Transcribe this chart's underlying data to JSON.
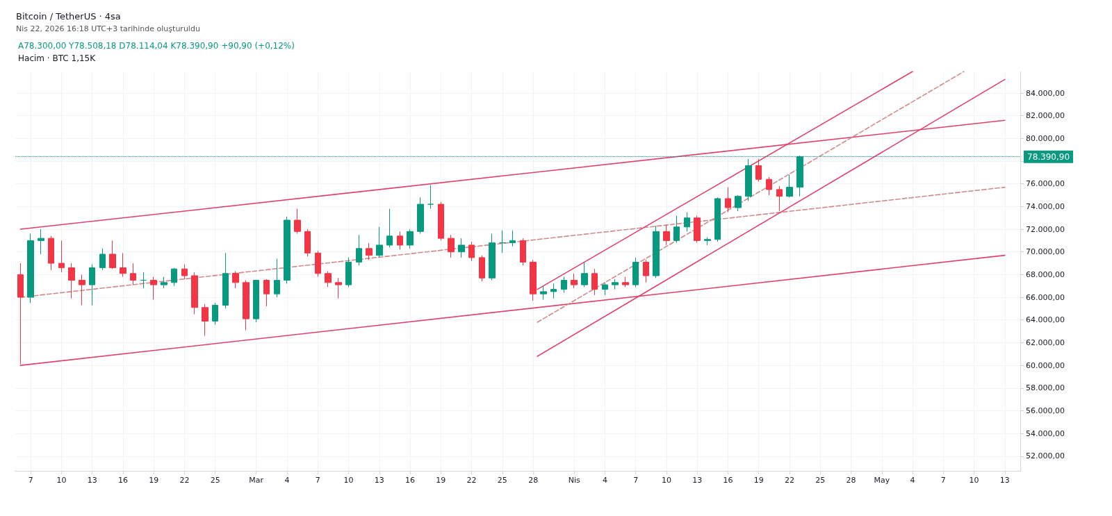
{
  "chart_data": {
    "type": "candlestick",
    "title": "Bitcoin / TetherUS · 4sa",
    "subtitle": "Nis 22, 2026 16:18 UTC+3 tarihinde oluşturuldu",
    "annotations": [
      "A78.300,00 Y78.508,18 D78.114,04 K78.390,90 +90,90 (+0,12%)",
      "Hacim · BTC 1,15K"
    ],
    "x": [
      "2026-02-06",
      "2026-02-07",
      "2026-02-08",
      "2026-02-09",
      "2026-02-10",
      "2026-02-11",
      "2026-02-12",
      "2026-02-13",
      "2026-02-14",
      "2026-02-15",
      "2026-02-16",
      "2026-02-17",
      "2026-02-18",
      "2026-02-19",
      "2026-02-20",
      "2026-02-21",
      "2026-02-22",
      "2026-02-23",
      "2026-02-24",
      "2026-02-25",
      "2026-02-26",
      "2026-02-27",
      "2026-02-28",
      "2026-03-01",
      "2026-03-02",
      "2026-03-03",
      "2026-03-04",
      "2026-03-05",
      "2026-03-06",
      "2026-03-07",
      "2026-03-08",
      "2026-03-09",
      "2026-03-10",
      "2026-03-11",
      "2026-03-12",
      "2026-03-13",
      "2026-03-14",
      "2026-03-15",
      "2026-03-16",
      "2026-03-17",
      "2026-03-18",
      "2026-03-19",
      "2026-03-20",
      "2026-03-21",
      "2026-03-22",
      "2026-03-23",
      "2026-03-24",
      "2026-03-25",
      "2026-03-26",
      "2026-03-27",
      "2026-03-28",
      "2026-03-29",
      "2026-03-30",
      "2026-03-31",
      "2026-04-01",
      "2026-04-02",
      "2026-04-03",
      "2026-04-04",
      "2026-04-05",
      "2026-04-06",
      "2026-04-07",
      "2026-04-08",
      "2026-04-09",
      "2026-04-10",
      "2026-04-11",
      "2026-04-12",
      "2026-04-13",
      "2026-04-14",
      "2026-04-15",
      "2026-04-16",
      "2026-04-17",
      "2026-04-18",
      "2026-04-19",
      "2026-04-20",
      "2026-04-21",
      "2026-04-22",
      "2026-04-23"
    ],
    "ohlc": [
      [
        68000,
        69000,
        60100,
        66000
      ],
      [
        66000,
        71600,
        65500,
        71000
      ],
      [
        71000,
        72000,
        69800,
        71200
      ],
      [
        71200,
        71400,
        68400,
        69000
      ],
      [
        69000,
        71000,
        68200,
        68600
      ],
      [
        68600,
        69000,
        65900,
        67500
      ],
      [
        67500,
        68000,
        65300,
        67100
      ],
      [
        67100,
        68900,
        65300,
        68600
      ],
      [
        68600,
        70300,
        68400,
        69800
      ],
      [
        69800,
        71000,
        68500,
        68600
      ],
      [
        68600,
        69900,
        67800,
        68100
      ],
      [
        68100,
        69000,
        67100,
        67500
      ],
      [
        67500,
        68200,
        66800,
        67500
      ],
      [
        67500,
        67800,
        65800,
        67100
      ],
      [
        67100,
        67800,
        66800,
        67300
      ],
      [
        67300,
        68600,
        67000,
        68500
      ],
      [
        68500,
        68900,
        67600,
        67900
      ],
      [
        67900,
        68200,
        64500,
        65100
      ],
      [
        65100,
        65400,
        62600,
        63900
      ],
      [
        63900,
        65500,
        63600,
        65300
      ],
      [
        65300,
        69900,
        65000,
        68100
      ],
      [
        68100,
        68300,
        66800,
        67300
      ],
      [
        67300,
        67500,
        63100,
        64100
      ],
      [
        64100,
        67500,
        63800,
        67500
      ],
      [
        67500,
        67600,
        65200,
        66300
      ],
      [
        66300,
        69400,
        66000,
        67500
      ],
      [
        67500,
        73100,
        67200,
        72800
      ],
      [
        72800,
        73800,
        71600,
        71800
      ],
      [
        71800,
        72000,
        69600,
        69900
      ],
      [
        69900,
        70100,
        67800,
        68100
      ],
      [
        68100,
        68300,
        66900,
        67300
      ],
      [
        67300,
        67700,
        65900,
        67100
      ],
      [
        67100,
        69500,
        66900,
        69100
      ],
      [
        69100,
        71500,
        68800,
        70300
      ],
      [
        70300,
        70800,
        69300,
        69700
      ],
      [
        69700,
        72200,
        69500,
        70600
      ],
      [
        70600,
        73800,
        70400,
        71400
      ],
      [
        71400,
        71800,
        70200,
        70600
      ],
      [
        70600,
        72000,
        70300,
        71800
      ],
      [
        71800,
        74800,
        71600,
        74200
      ],
      [
        74200,
        75900,
        73800,
        74200
      ],
      [
        74200,
        74400,
        71000,
        71200
      ],
      [
        71200,
        71500,
        69500,
        70000
      ],
      [
        70000,
        71200,
        69500,
        70600
      ],
      [
        70600,
        70900,
        69200,
        69500
      ],
      [
        69500,
        69700,
        67400,
        67700
      ],
      [
        67700,
        71600,
        67500,
        70800
      ],
      [
        70800,
        71900,
        69900,
        70800
      ],
      [
        70800,
        71900,
        70500,
        71000
      ],
      [
        71000,
        71200,
        68800,
        69100
      ],
      [
        69100,
        69300,
        65700,
        66300
      ],
      [
        66300,
        67000,
        65800,
        66500
      ],
      [
        66500,
        67200,
        65900,
        66700
      ],
      [
        66700,
        67800,
        66400,
        67500
      ],
      [
        67500,
        68100,
        66800,
        67100
      ],
      [
        67100,
        69100,
        66900,
        68100
      ],
      [
        68100,
        68500,
        66200,
        66700
      ],
      [
        66700,
        67300,
        66200,
        67100
      ],
      [
        67100,
        67600,
        66700,
        67300
      ],
      [
        67300,
        67800,
        66900,
        67100
      ],
      [
        67100,
        69500,
        66900,
        69100
      ],
      [
        69100,
        69300,
        67300,
        67900
      ],
      [
        67900,
        72300,
        67700,
        71800
      ],
      [
        71800,
        72400,
        70600,
        71000
      ],
      [
        71000,
        73200,
        70800,
        72200
      ],
      [
        72200,
        73500,
        71800,
        73000
      ],
      [
        73000,
        73200,
        70800,
        71000
      ],
      [
        71000,
        71300,
        70600,
        71100
      ],
      [
        71100,
        74800,
        70900,
        74700
      ],
      [
        74700,
        75700,
        73500,
        73900
      ],
      [
        73900,
        75000,
        73600,
        74900
      ],
      [
        74900,
        78200,
        74500,
        77600
      ],
      [
        77600,
        78200,
        76200,
        76400
      ],
      [
        76400,
        76600,
        75000,
        75500
      ],
      [
        75500,
        75800,
        73600,
        74900
      ],
      [
        74900,
        76800,
        74800,
        75700
      ],
      [
        75700,
        78500,
        74900,
        78390.9
      ]
    ],
    "series": [
      {
        "type": "line",
        "color": "#e0406a",
        "line_style": "solid",
        "x": [
          "2026-02-06",
          "2026-05-13"
        ],
        "values": [
          72000,
          81600
        ]
      },
      {
        "type": "line",
        "color": "#e0406a",
        "line_style": "solid",
        "x": [
          "2026-02-06",
          "2026-05-13"
        ],
        "values": [
          60000,
          69700
        ]
      },
      {
        "type": "line",
        "color": "#d08a8a",
        "line_style": "dashed",
        "x": [
          "2026-02-06",
          "2026-05-13"
        ],
        "values": [
          66000,
          75700
        ]
      },
      {
        "type": "line",
        "color": "#e0406a",
        "line_style": "solid",
        "x": [
          "2026-03-28T10:00",
          "2026-05-13T00:00"
        ],
        "values": [
          60800,
          85200
        ]
      },
      {
        "type": "line",
        "color": "#e0406a",
        "line_style": "solid",
        "x": [
          "2026-03-28T10:00",
          "2026-05-04T00:00"
        ],
        "values": [
          66700,
          85900
        ]
      },
      {
        "type": "line",
        "color": "#d08a8a",
        "line_style": "dashed",
        "x": [
          "2026-03-28T10:00",
          "2026-05-09T00:00"
        ],
        "values": [
          63800,
          85900
        ]
      }
    ],
    "ref_lines": [
      {
        "axis": "y",
        "value": 78390.9,
        "label": "78.390,90",
        "color": "#089981",
        "line_style": "dotted"
      }
    ],
    "xlim": [
      "2026-02-05T12:00",
      "2026-05-14T12:00"
    ],
    "xticks": [
      {
        "value": "2026-02-07",
        "label": "7"
      },
      {
        "value": "2026-02-10",
        "label": "10"
      },
      {
        "value": "2026-02-13",
        "label": "13"
      },
      {
        "value": "2026-02-16",
        "label": "16"
      },
      {
        "value": "2026-02-19",
        "label": "19"
      },
      {
        "value": "2026-02-22",
        "label": "22"
      },
      {
        "value": "2026-02-25",
        "label": "25"
      },
      {
        "value": "2026-03-01",
        "label": "Mar"
      },
      {
        "value": "2026-03-04",
        "label": "4"
      },
      {
        "value": "2026-03-07",
        "label": "7"
      },
      {
        "value": "2026-03-10",
        "label": "10"
      },
      {
        "value": "2026-03-13",
        "label": "13"
      },
      {
        "value": "2026-03-16",
        "label": "16"
      },
      {
        "value": "2026-03-19",
        "label": "19"
      },
      {
        "value": "2026-03-22",
        "label": "22"
      },
      {
        "value": "2026-03-25",
        "label": "25"
      },
      {
        "value": "2026-03-28",
        "label": "28"
      },
      {
        "value": "2026-04-01",
        "label": "Nis"
      },
      {
        "value": "2026-04-04",
        "label": "4"
      },
      {
        "value": "2026-04-07",
        "label": "7"
      },
      {
        "value": "2026-04-10",
        "label": "10"
      },
      {
        "value": "2026-04-13",
        "label": "13"
      },
      {
        "value": "2026-04-16",
        "label": "16"
      },
      {
        "value": "2026-04-19",
        "label": "19"
      },
      {
        "value": "2026-04-22",
        "label": "22"
      },
      {
        "value": "2026-04-25",
        "label": "25"
      },
      {
        "value": "2026-04-28",
        "label": "28"
      },
      {
        "value": "2026-05-01",
        "label": "May"
      },
      {
        "value": "2026-05-04",
        "label": "4"
      },
      {
        "value": "2026-05-07",
        "label": "7"
      },
      {
        "value": "2026-05-10",
        "label": "10"
      },
      {
        "value": "2026-05-13",
        "label": "13"
      }
    ],
    "ylim": [
      50700,
      85900
    ],
    "yticks": [
      {
        "value": 52000,
        "label": "52.000,00"
      },
      {
        "value": 54000,
        "label": "54.000,00"
      },
      {
        "value": 56000,
        "label": "56.000,00"
      },
      {
        "value": 58000,
        "label": "58.000,00"
      },
      {
        "value": 60000,
        "label": "60.000,00"
      },
      {
        "value": 62000,
        "label": "62.000,00"
      },
      {
        "value": 64000,
        "label": "64.000,00"
      },
      {
        "value": 66000,
        "label": "66.000,00"
      },
      {
        "value": 68000,
        "label": "68.000,00"
      },
      {
        "value": 70000,
        "label": "70.000,00"
      },
      {
        "value": 72000,
        "label": "72.000,00"
      },
      {
        "value": 74000,
        "label": "74.000,00"
      },
      {
        "value": 76000,
        "label": "76.000,00"
      },
      {
        "value": 78000,
        "label": null
      },
      {
        "value": 80000,
        "label": "80.000,00"
      },
      {
        "value": 82000,
        "label": "82.000,00"
      },
      {
        "value": 84000,
        "label": "84.000,00"
      }
    ],
    "grid": true
  }
}
